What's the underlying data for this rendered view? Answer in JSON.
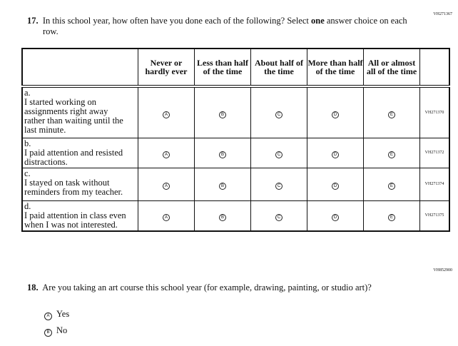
{
  "q17": {
    "id": "VH271367",
    "number": "17.",
    "text_before": "In this school year, how often have you done each of the following? Select ",
    "text_bold": "one",
    "text_after": " answer choice on each row.",
    "columns": [
      "Never or hardly ever",
      "Less than half of the time",
      "About half of the time",
      "More than half of the time",
      "All or almost all of the time"
    ],
    "bubble_letters": [
      "A",
      "B",
      "C",
      "D",
      "E"
    ],
    "rows": [
      {
        "letter": "a.",
        "text": "I started working on assignments right away rather than waiting until the last minute.",
        "id": "VH271370"
      },
      {
        "letter": "b.",
        "text": "I paid attention and resisted distractions.",
        "id": "VH271372"
      },
      {
        "letter": "c.",
        "text": "I stayed on task without reminders from my teacher.",
        "id": "VH271374"
      },
      {
        "letter": "d.",
        "text": "I paid attention in class even when I was not interested.",
        "id": "VH271375"
      }
    ]
  },
  "q18": {
    "id": "VH852900",
    "number": "18.",
    "text": "Are you taking an art course this school year (for example, drawing, painting, or studio art)?",
    "options": [
      {
        "letter": "A",
        "label": "Yes"
      },
      {
        "letter": "B",
        "label": "No"
      }
    ]
  }
}
